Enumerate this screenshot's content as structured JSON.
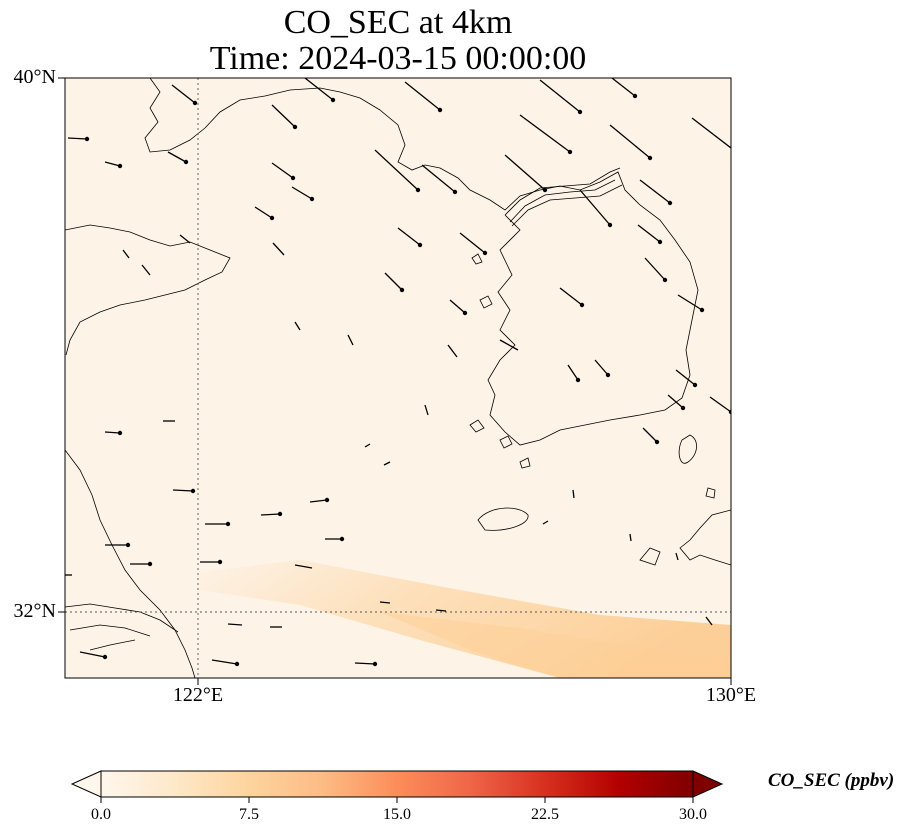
{
  "title": {
    "line1": "CO_SEC at 4km",
    "line2": "Time: 2024-03-15 00:00:00"
  },
  "map": {
    "lon_range": [
      119,
      130
    ],
    "lat_range": [
      31,
      40
    ],
    "lat_ticks": [
      {
        "value": 40,
        "label": "40°N"
      },
      {
        "value": 32,
        "label": "32°N"
      }
    ],
    "lon_ticks": [
      {
        "value": 122,
        "label": "122°E"
      },
      {
        "value": 130,
        "label": "130°E"
      }
    ],
    "gridlines": {
      "lat": [
        32
      ],
      "lon": [
        122
      ]
    },
    "background_color": "#fdf3e7",
    "plume_color": "#fdd9ab",
    "wind_vectors": "black quiver arrows"
  },
  "colorbar": {
    "label": "CO_SEC (ppbv)",
    "min": 0.0,
    "max": 30.0,
    "ticks": [
      "0.0",
      "7.5",
      "15.0",
      "22.5",
      "30.0"
    ],
    "colormap": "OrRd",
    "colors": [
      "#fff7ec",
      "#fee8c8",
      "#fdd49e",
      "#fdbb84",
      "#fc8d59",
      "#ef6548",
      "#d7301f",
      "#b30000",
      "#7f0000"
    ],
    "extend": "both"
  }
}
